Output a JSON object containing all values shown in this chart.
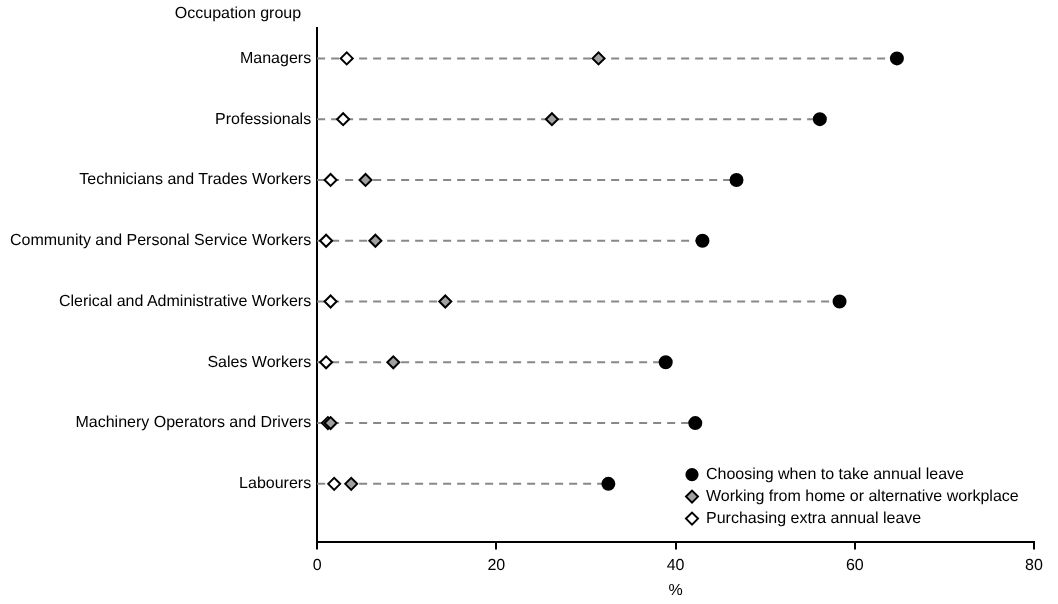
{
  "chart_data": {
    "type": "scatter",
    "orientation": "horizontal",
    "ylabel": "Occupation group",
    "xlabel": "%",
    "categories": [
      "Managers",
      "Professionals",
      "Technicians and Trades Workers",
      "Community and Personal Service Workers",
      "Clerical and Administrative Workers",
      "Sales Workers",
      "Machinery Operators and Drivers",
      "Labourers"
    ],
    "series": [
      {
        "name": "Choosing when to take annual leave",
        "color": "#000000",
        "marker": "circle",
        "values": [
          64.7,
          56.1,
          46.8,
          43.0,
          58.3,
          38.9,
          42.2,
          32.5
        ]
      },
      {
        "name": "Working from home or alternative workplace",
        "color": "#a0a0a0",
        "marker": "diamond",
        "values": [
          31.4,
          26.2,
          5.4,
          6.5,
          14.3,
          8.5,
          1.5,
          3.8
        ]
      },
      {
        "name": "Purchasing extra annual leave",
        "color": "#ffffff",
        "marker": "diamond",
        "values": [
          3.3,
          2.9,
          1.5,
          1.0,
          1.5,
          1.0,
          1.2,
          1.9
        ]
      }
    ],
    "xlim": [
      0,
      80
    ],
    "xticks": [
      0,
      20,
      40,
      60,
      80
    ],
    "grid": false,
    "legend": "bottom right",
    "line_style": "dashed"
  }
}
